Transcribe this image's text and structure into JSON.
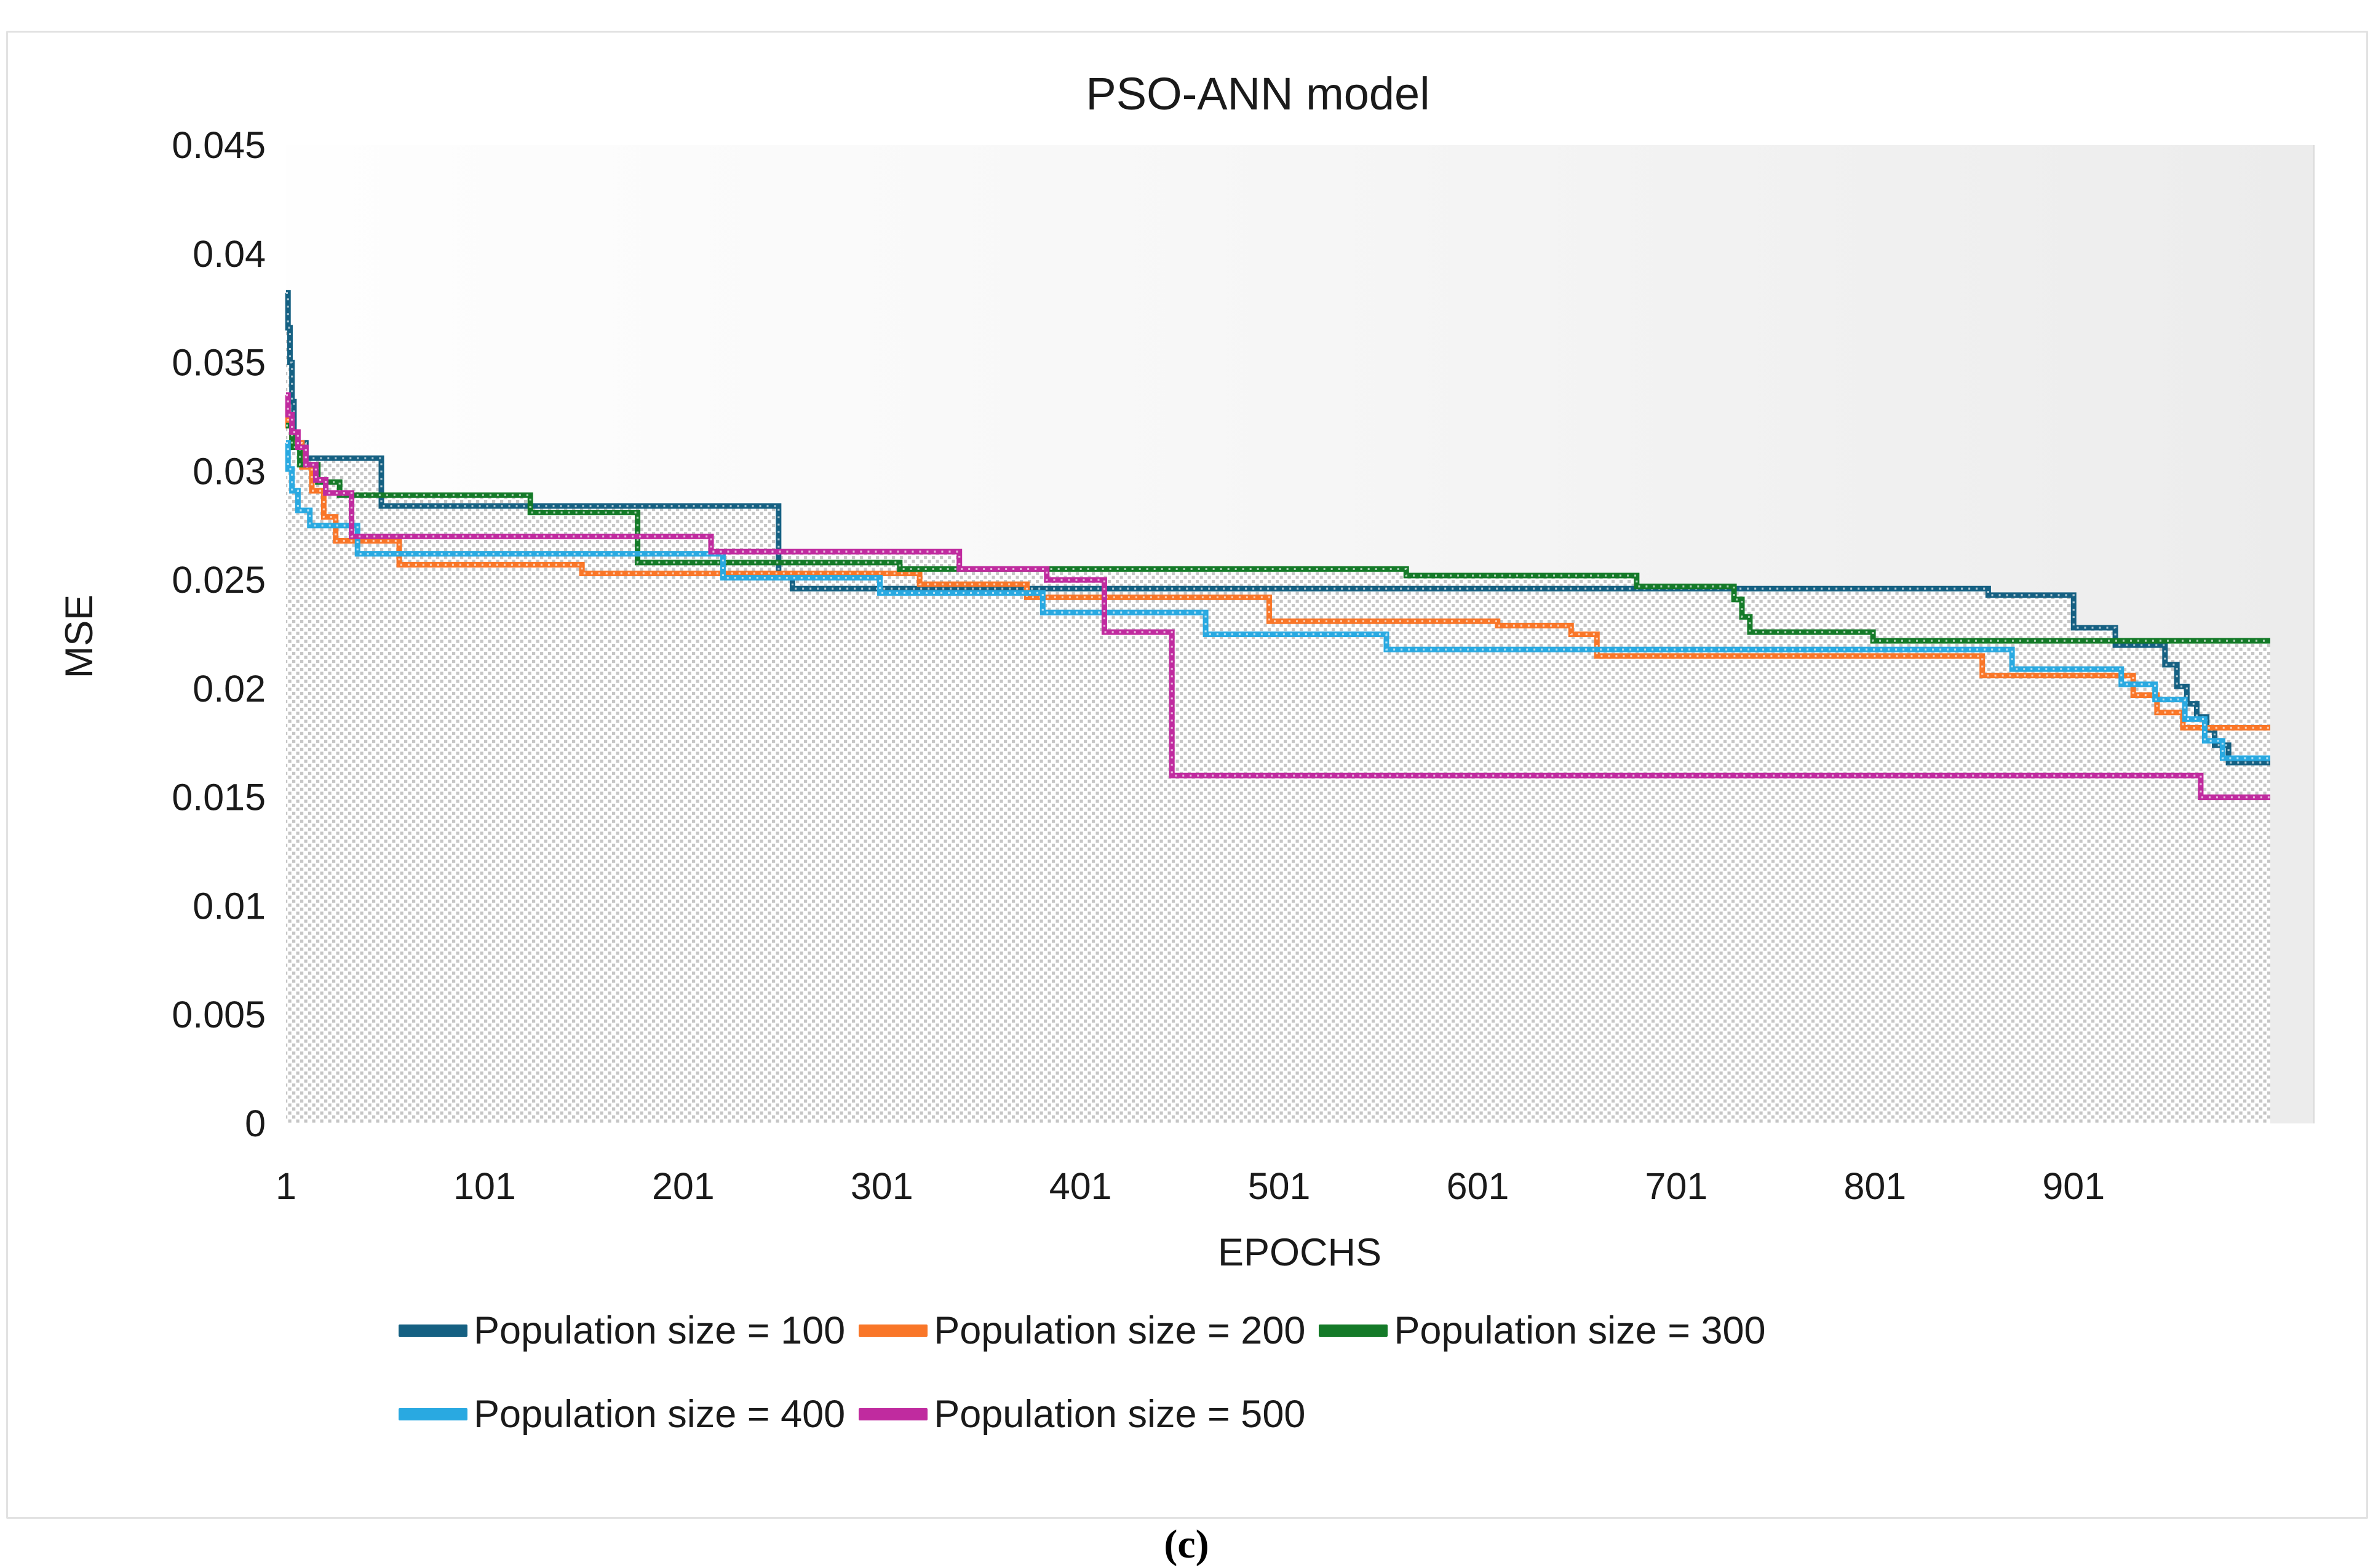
{
  "figure": {
    "caption": "(c)"
  },
  "chart_data": {
    "type": "line",
    "step": "post",
    "title": "PSO-ANN model",
    "xlabel": "EPOCHS",
    "ylabel": "MSE",
    "xlim": [
      1,
      1022
    ],
    "ylim": [
      0,
      0.045
    ],
    "x_ticks": [
      1,
      101,
      201,
      301,
      401,
      501,
      601,
      701,
      801,
      901
    ],
    "y_ticks": [
      0,
      0.005,
      0.01,
      0.015,
      0.02,
      0.025,
      0.03,
      0.035,
      0.04,
      0.045
    ],
    "y_tick_labels": [
      "0",
      "0.005",
      "0.01",
      "0.015",
      "0.02",
      "0.025",
      "0.03",
      "0.035",
      "0.04",
      "0.045"
    ],
    "grid": false,
    "legend_position": "bottom",
    "plot_area_fill": "gray dotted stipple under curves",
    "background_right_tint": "#ededed",
    "series": [
      {
        "name": "Population size = 100",
        "color": "#156082",
        "points": [
          [
            1,
            0.0382
          ],
          [
            2,
            0.0366
          ],
          [
            3,
            0.035
          ],
          [
            4,
            0.0332
          ],
          [
            5,
            0.0313
          ],
          [
            11,
            0.0306
          ],
          [
            49,
            0.0284
          ],
          [
            249,
            0.0252
          ],
          [
            256,
            0.0246
          ],
          [
            858,
            0.0243
          ],
          [
            901,
            0.0228
          ],
          [
            922,
            0.022
          ],
          [
            947,
            0.0211
          ],
          [
            953,
            0.0201
          ],
          [
            958,
            0.0193
          ],
          [
            963,
            0.0187
          ],
          [
            968,
            0.0181
          ],
          [
            972,
            0.0174
          ],
          [
            979,
            0.0166
          ],
          [
            1000,
            0.0166
          ]
        ]
      },
      {
        "name": "Population size = 200",
        "color": "#f97628",
        "points": [
          [
            1,
            0.033
          ],
          [
            2,
            0.0321
          ],
          [
            4,
            0.0313
          ],
          [
            9,
            0.0302
          ],
          [
            14,
            0.0291
          ],
          [
            20,
            0.0279
          ],
          [
            26,
            0.0268
          ],
          [
            58,
            0.0257
          ],
          [
            150,
            0.0253
          ],
          [
            320,
            0.0248
          ],
          [
            374,
            0.0242
          ],
          [
            496,
            0.0231
          ],
          [
            611,
            0.0229
          ],
          [
            648,
            0.0225
          ],
          [
            661,
            0.0215
          ],
          [
            855,
            0.0206
          ],
          [
            931,
            0.0197
          ],
          [
            943,
            0.0189
          ],
          [
            956,
            0.0182
          ],
          [
            1000,
            0.0182
          ]
        ]
      },
      {
        "name": "Population size = 300",
        "color": "#147a28",
        "points": [
          [
            1,
            0.0321
          ],
          [
            4,
            0.0311
          ],
          [
            8,
            0.0303
          ],
          [
            17,
            0.0295
          ],
          [
            28,
            0.0289
          ],
          [
            124,
            0.0281
          ],
          [
            178,
            0.0258
          ],
          [
            310,
            0.0255
          ],
          [
            565,
            0.0252
          ],
          [
            681,
            0.0247
          ],
          [
            730,
            0.0241
          ],
          [
            734,
            0.0233
          ],
          [
            738,
            0.0226
          ],
          [
            800,
            0.0222
          ],
          [
            1000,
            0.0222
          ]
        ]
      },
      {
        "name": "Population size = 400",
        "color": "#29a9e1",
        "points": [
          [
            1,
            0.0313
          ],
          [
            2,
            0.0301
          ],
          [
            4,
            0.0291
          ],
          [
            7,
            0.0282
          ],
          [
            13,
            0.0275
          ],
          [
            37,
            0.0262
          ],
          [
            221,
            0.0251
          ],
          [
            300,
            0.0244
          ],
          [
            382,
            0.0235
          ],
          [
            464,
            0.0225
          ],
          [
            555,
            0.0218
          ],
          [
            870,
            0.0209
          ],
          [
            925,
            0.0202
          ],
          [
            942,
            0.0195
          ],
          [
            957,
            0.0186
          ],
          [
            967,
            0.0176
          ],
          [
            976,
            0.0168
          ],
          [
            1000,
            0.0168
          ]
        ]
      },
      {
        "name": "Population size = 500",
        "color": "#c02b9f",
        "points": [
          [
            1,
            0.0335
          ],
          [
            2,
            0.0326
          ],
          [
            4,
            0.0318
          ],
          [
            7,
            0.0311
          ],
          [
            11,
            0.0303
          ],
          [
            16,
            0.0296
          ],
          [
            21,
            0.029
          ],
          [
            34,
            0.027
          ],
          [
            215,
            0.0263
          ],
          [
            340,
            0.0255
          ],
          [
            384,
            0.025
          ],
          [
            413,
            0.0226
          ],
          [
            447,
            0.016
          ],
          [
            965,
            0.015
          ],
          [
            1000,
            0.015
          ]
        ]
      }
    ]
  }
}
